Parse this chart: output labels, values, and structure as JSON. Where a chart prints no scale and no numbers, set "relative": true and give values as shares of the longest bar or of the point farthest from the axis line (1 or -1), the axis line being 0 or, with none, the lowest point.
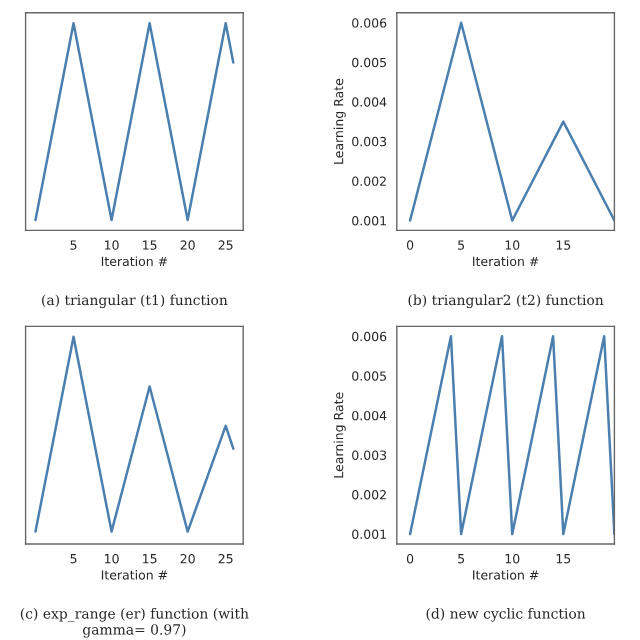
{
  "chart_data": [
    {
      "type": "line",
      "xlabel": "Iteration #",
      "annotations": [
        "(a) triangular (t1) function"
      ],
      "tick_labels": "x",
      "x": [
        0,
        5,
        10,
        15,
        20,
        25,
        26
      ],
      "relative": true,
      "series": [
        {
          "color": "#4a7fb0",
          "values": [
            0.05,
            1,
            0.05,
            1,
            0.05,
            1,
            0.81
          ]
        }
      ],
      "xlim": [
        -1.3,
        27.3
      ],
      "xticks": [
        5,
        10,
        15,
        20,
        25
      ],
      "grid": false
    },
    {
      "type": "line",
      "xlabel": "Iteration #",
      "ylabel": "Learning Rate",
      "annotations": [
        "(b) triangular2 (t2) function"
      ],
      "x": [
        0,
        5,
        10,
        15,
        20
      ],
      "series": [
        {
          "color": "#4a7fb0",
          "values": [
            0.001,
            0.006,
            0.001,
            0.0035,
            0.001
          ]
        }
      ],
      "xlim": [
        -1.3,
        20
      ],
      "xticks": [
        0,
        5,
        10,
        15
      ],
      "ylim": [
        0.00075,
        0.00625
      ],
      "yticks": [
        {
          "value": 0.001,
          "label": "0.001"
        },
        {
          "value": 0.002,
          "label": "0.002"
        },
        {
          "value": 0.003,
          "label": "0.003"
        },
        {
          "value": 0.004,
          "label": "0.004"
        },
        {
          "value": 0.005,
          "label": "0.005"
        },
        {
          "value": 0.006,
          "label": "0.006"
        }
      ],
      "grid": false
    },
    {
      "type": "line",
      "xlabel": "Iteration #",
      "annotations": [
        "(c) exp_range (er) function (with gamma= 0.97)"
      ],
      "tick_labels": "x",
      "x": [
        0,
        5,
        10,
        15,
        20,
        25,
        26
      ],
      "relative": true,
      "series": [
        {
          "color": "#4a7fb0",
          "values": [
            0.06,
            1,
            0.06,
            0.76,
            0.06,
            0.57,
            0.46
          ]
        }
      ],
      "xlim": [
        -1.3,
        27.3
      ],
      "xticks": [
        5,
        10,
        15,
        20,
        25
      ],
      "grid": false
    },
    {
      "type": "line",
      "xlabel": "Iteration #",
      "ylabel": "Learning Rate",
      "annotations": [
        "(d) new cyclic function"
      ],
      "x": [
        0,
        4,
        5,
        9,
        10,
        14,
        15,
        19,
        20
      ],
      "series": [
        {
          "color": "#4a7fb0",
          "values": [
            0.001,
            0.006,
            0.001,
            0.006,
            0.001,
            0.006,
            0.001,
            0.006,
            0.001
          ]
        }
      ],
      "xlim": [
        -1.3,
        20
      ],
      "xticks": [
        0,
        5,
        10,
        15
      ],
      "ylim": [
        0.00075,
        0.00625
      ],
      "yticks": [
        {
          "value": 0.001,
          "label": "0.001"
        },
        {
          "value": 0.002,
          "label": "0.002"
        },
        {
          "value": 0.003,
          "label": "0.003"
        },
        {
          "value": 0.004,
          "label": "0.004"
        },
        {
          "value": 0.005,
          "label": "0.005"
        },
        {
          "value": 0.006,
          "label": "0.006"
        }
      ],
      "grid": false
    }
  ]
}
